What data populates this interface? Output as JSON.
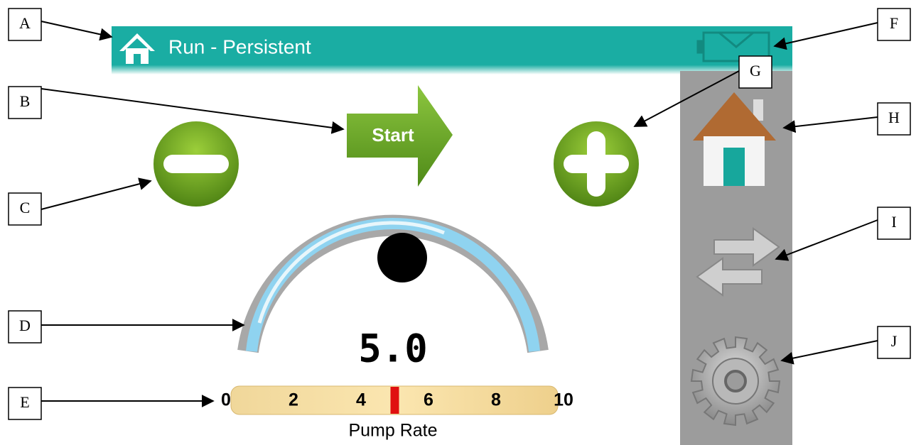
{
  "header": {
    "title": "Run - Persistent"
  },
  "start_button": {
    "label": "Start"
  },
  "display": {
    "value": "5.0"
  },
  "scale": {
    "min": 0,
    "max": 10,
    "ticks": [
      0,
      2,
      4,
      6,
      8,
      10
    ],
    "marker": 5,
    "label": "Pump Rate"
  },
  "callouts": [
    "A",
    "B",
    "C",
    "D",
    "E",
    "F",
    "G",
    "H",
    "I",
    "J"
  ]
}
